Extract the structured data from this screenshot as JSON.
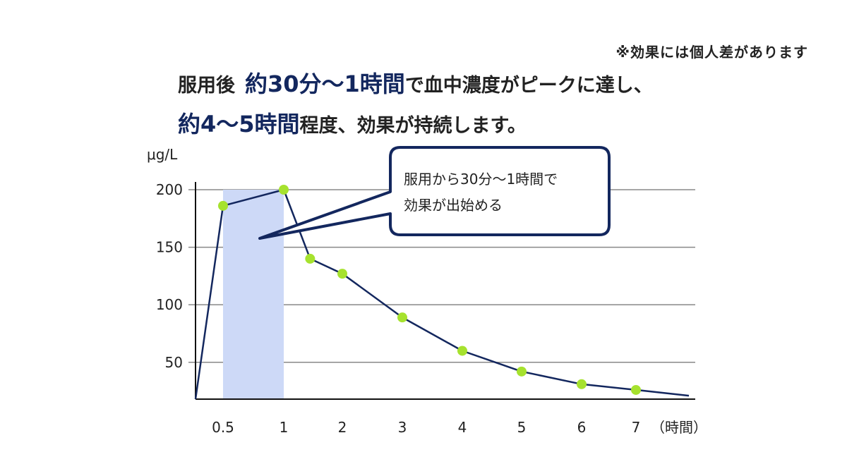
{
  "note": "※効果には個人差があります",
  "headline": {
    "line1_prefix": "服用後",
    "line1_em": "約30分〜1時間",
    "line1_suffix": "で血中濃度がピークに達し、",
    "line2_em": "約4〜5時間",
    "line2_suffix": "程度、効果が持続します。"
  },
  "callout": {
    "line1": "服用から30分〜1時間で",
    "line2": "効果が出始める"
  },
  "colors": {
    "line": "#13275e",
    "marker": "#a6e22e",
    "highlight": "#cdd9f7",
    "grid": "#888888",
    "emphasis": "#13275e"
  },
  "chart_data": {
    "type": "line",
    "ylabel": "μg/L",
    "xlabel": "（時間）",
    "ylim": [
      18,
      200
    ],
    "yticks": [
      50,
      100,
      150,
      200
    ],
    "xticks": [
      0.5,
      1,
      2,
      3,
      4,
      5,
      6,
      7
    ],
    "xtick_labels": [
      "0.5",
      "1",
      "2",
      "3",
      "4",
      "5",
      "6",
      "7"
    ],
    "grid": true,
    "highlight_x_range": [
      0.5,
      1
    ],
    "series": [
      {
        "x": [
          0,
          0.5,
          1,
          1.45,
          2,
          3,
          4,
          5,
          6,
          7,
          7.9
        ],
        "y": [
          18,
          186,
          200,
          140,
          127,
          89,
          60,
          42,
          31,
          26,
          21
        ],
        "marker_indices": [
          1,
          2,
          3,
          4,
          5,
          6,
          7,
          8,
          9
        ]
      }
    ]
  }
}
